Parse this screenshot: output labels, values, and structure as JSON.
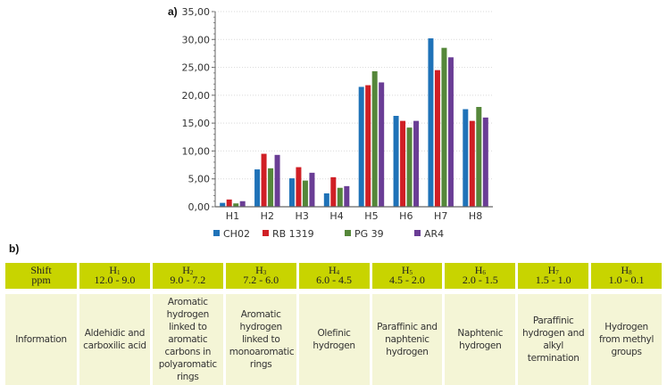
{
  "chart_data": {
    "type": "bar",
    "panel_label": "a)",
    "title": "",
    "xlabel": "",
    "ylabel": "",
    "categories": [
      "H1",
      "H2",
      "H3",
      "H4",
      "H5",
      "H6",
      "H7",
      "H8"
    ],
    "ylim": [
      0,
      35
    ],
    "yticks": [
      0,
      5,
      10,
      15,
      20,
      25,
      30,
      35
    ],
    "ytick_labels": [
      "0,00",
      "5,00",
      "10,00",
      "15,00",
      "20,00",
      "25,00",
      "30,00",
      "35,00"
    ],
    "grid": "horizontal-dotted",
    "legend_position": "bottom",
    "series": [
      {
        "name": "CH02",
        "color": "#1f72b8",
        "values": [
          0.7,
          6.7,
          5.1,
          2.4,
          21.5,
          16.3,
          30.2,
          17.5
        ]
      },
      {
        "name": "RB 1319",
        "color": "#d01f25",
        "values": [
          1.3,
          9.5,
          7.1,
          5.3,
          21.8,
          15.4,
          24.5,
          15.4
        ]
      },
      {
        "name": "PG 39",
        "color": "#55873a",
        "values": [
          0.6,
          6.9,
          4.7,
          3.4,
          24.3,
          14.2,
          28.5,
          17.9
        ]
      },
      {
        "name": "AR4",
        "color": "#6a3d95",
        "values": [
          1.0,
          9.3,
          6.1,
          3.7,
          22.3,
          15.4,
          26.8,
          16.0
        ]
      }
    ]
  },
  "table": {
    "panel_label": "b)",
    "header": [
      {
        "main": "Shift",
        "sub": "",
        "range": "ppm"
      },
      {
        "main": "H",
        "sub": "1",
        "range": "12.0 - 9.0"
      },
      {
        "main": "H",
        "sub": "2",
        "range": "9.0 - 7.2"
      },
      {
        "main": "H",
        "sub": "3",
        "range": "7.2 - 6.0"
      },
      {
        "main": "H",
        "sub": "4",
        "range": "6.0 - 4.5"
      },
      {
        "main": "H",
        "sub": "5",
        "range": "4.5 - 2.0"
      },
      {
        "main": "H",
        "sub": "6",
        "range": "2.0 - 1.5"
      },
      {
        "main": "H",
        "sub": "7",
        "range": "1.5 - 1.0"
      },
      {
        "main": "H",
        "sub": "8",
        "range": "1.0 - 0.1"
      }
    ],
    "row": [
      "Information",
      "Aldehidic and carboxilic acid",
      "Aromatic hydrogen linked to aromatic carbons in polyaromatic rings",
      "Aromatic hydrogen linked to monoaromatic rings",
      "Olefinic hydrogen",
      "Paraffinic and naphtenic hydrogen",
      "Naphtenic hydrogen",
      "Paraffinic hydrogen and alkyl termination",
      "Hydrogen from methyl groups"
    ]
  }
}
